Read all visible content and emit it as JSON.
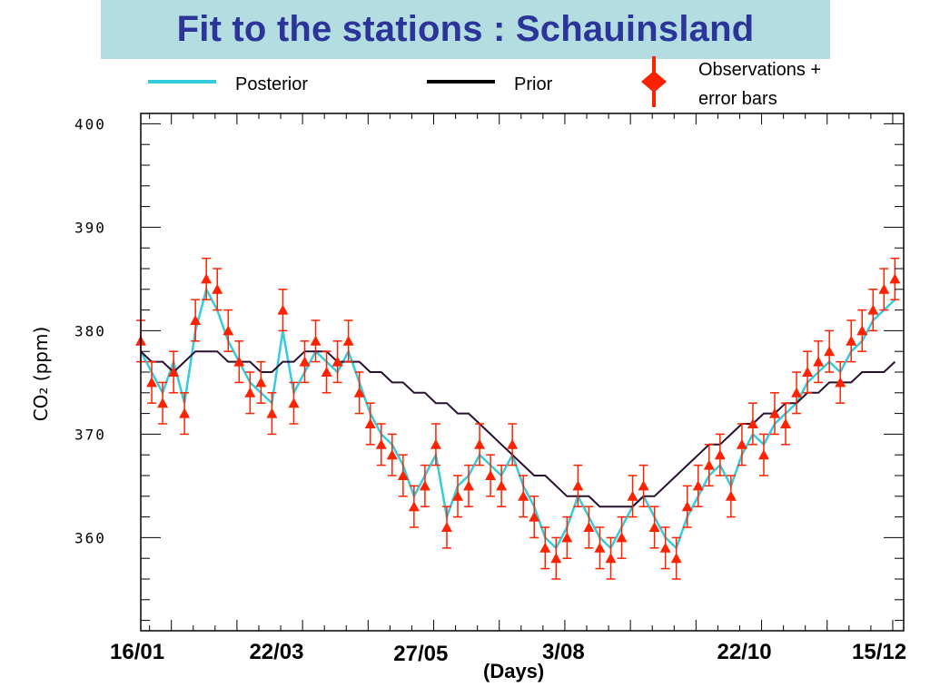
{
  "title": "Fit to the stations : Schauinsland",
  "legend": {
    "posterior": "Posterior",
    "prior": "Prior",
    "observations_line1": "Observations +",
    "observations_line2": "error bars"
  },
  "colors": {
    "title_bg": "#b3dde0",
    "title_text": "#2b3499",
    "posterior": "#33ccdd",
    "prior": "#2a1030",
    "observations": "#ff2200"
  },
  "chart_data": {
    "type": "line",
    "title": "Fit to the stations : Schauinsland",
    "xlabel": "(Days)",
    "ylabel": "CO₂ (ppm)",
    "xlim": [
      16,
      365
    ],
    "ylim": [
      351,
      401
    ],
    "yticks": [
      360,
      370,
      380,
      390,
      400
    ],
    "xticks": [
      {
        "day": 16,
        "label": "16/01"
      },
      {
        "day": 81,
        "label": "22/03"
      },
      {
        "day": 147,
        "label": "27/05"
      },
      {
        "day": 215,
        "label": "3/08"
      },
      {
        "day": 295,
        "label": "22/10"
      },
      {
        "day": 349,
        "label": "15/12"
      }
    ],
    "x": [
      16,
      21,
      26,
      31,
      36,
      41,
      46,
      51,
      56,
      61,
      66,
      71,
      76,
      81,
      86,
      91,
      96,
      101,
      106,
      111,
      116,
      121,
      126,
      131,
      136,
      141,
      146,
      151,
      156,
      161,
      166,
      171,
      176,
      181,
      186,
      191,
      196,
      201,
      206,
      211,
      216,
      221,
      226,
      231,
      236,
      241,
      246,
      251,
      256,
      261,
      266,
      271,
      276,
      281,
      286,
      291,
      296,
      301,
      306,
      311,
      316,
      321,
      326,
      331,
      336,
      341,
      346,
      351,
      356,
      361
    ],
    "series": [
      {
        "name": "Posterior",
        "values": [
          378,
          376,
          374,
          377,
          373,
          380,
          384,
          382,
          379,
          377,
          375,
          374,
          373,
          380,
          374,
          376,
          378,
          377,
          376,
          378,
          375,
          372,
          370,
          369,
          367,
          364,
          366,
          368,
          362,
          365,
          366,
          368,
          367,
          366,
          368,
          365,
          363,
          360,
          359,
          361,
          364,
          362,
          360,
          359,
          361,
          363,
          364,
          362,
          360,
          359,
          362,
          364,
          366,
          367,
          365,
          368,
          370,
          369,
          371,
          372,
          373,
          375,
          376,
          377,
          376,
          378,
          379,
          381,
          382,
          383
        ]
      },
      {
        "name": "Prior",
        "values": [
          378,
          377,
          377,
          376,
          377,
          378,
          378,
          378,
          377,
          377,
          377,
          376,
          376,
          377,
          377,
          378,
          378,
          378,
          377,
          377,
          377,
          376,
          376,
          375,
          375,
          374,
          374,
          373,
          373,
          372,
          372,
          371,
          370,
          369,
          368,
          367,
          366,
          366,
          365,
          364,
          364,
          364,
          363,
          363,
          363,
          363,
          364,
          364,
          365,
          366,
          367,
          368,
          369,
          369,
          370,
          371,
          371,
          372,
          372,
          373,
          373,
          374,
          374,
          375,
          375,
          375,
          376,
          376,
          376,
          377
        ]
      },
      {
        "name": "Observations + error bars",
        "values": [
          379,
          375,
          373,
          376,
          372,
          381,
          385,
          384,
          380,
          377,
          374,
          375,
          372,
          382,
          373,
          377,
          379,
          376,
          377,
          379,
          374,
          371,
          369,
          368,
          366,
          363,
          365,
          369,
          361,
          364,
          365,
          369,
          366,
          365,
          369,
          364,
          362,
          359,
          358,
          360,
          365,
          361,
          359,
          358,
          360,
          364,
          365,
          361,
          359,
          358,
          363,
          365,
          367,
          368,
          364,
          369,
          371,
          368,
          372,
          371,
          374,
          376,
          377,
          378,
          375,
          379,
          380,
          382,
          384,
          385
        ],
        "error": 2
      }
    ],
    "grid": false,
    "legend_position": "top"
  }
}
